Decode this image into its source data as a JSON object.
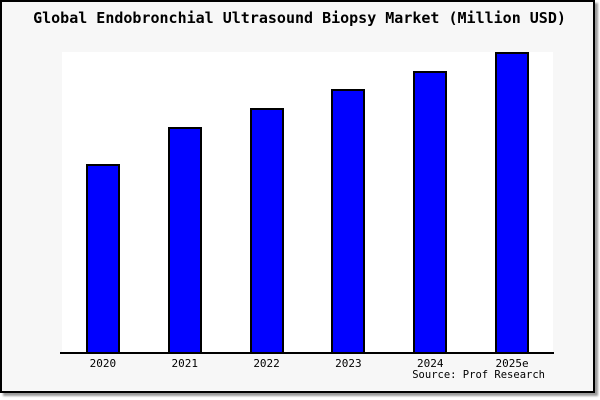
{
  "chart_data": {
    "type": "bar",
    "title": "Global Endobronchial Ultrasound Biopsy Market (Million USD)",
    "categories": [
      "2020",
      "2021",
      "2022",
      "2023",
      "2024",
      "2025e"
    ],
    "values": [
      62.7,
      75.0,
      81.3,
      87.7,
      93.7,
      100
    ],
    "value_scale": "relative (y-axis has no tick labels in source image; tallest bar 2025e normalized to 100)",
    "xlabel": "",
    "ylabel": "",
    "ylim": [
      0,
      100
    ],
    "grid": false,
    "legend": false,
    "y_axis_labels_shown": false,
    "source": "Source: Prof Research",
    "colors": {
      "bar_fill": "#0000ff",
      "bar_border": "#000000",
      "plot_background": "#ffffff",
      "canvas_background": "#f7f7f7",
      "text": "#000000"
    }
  }
}
